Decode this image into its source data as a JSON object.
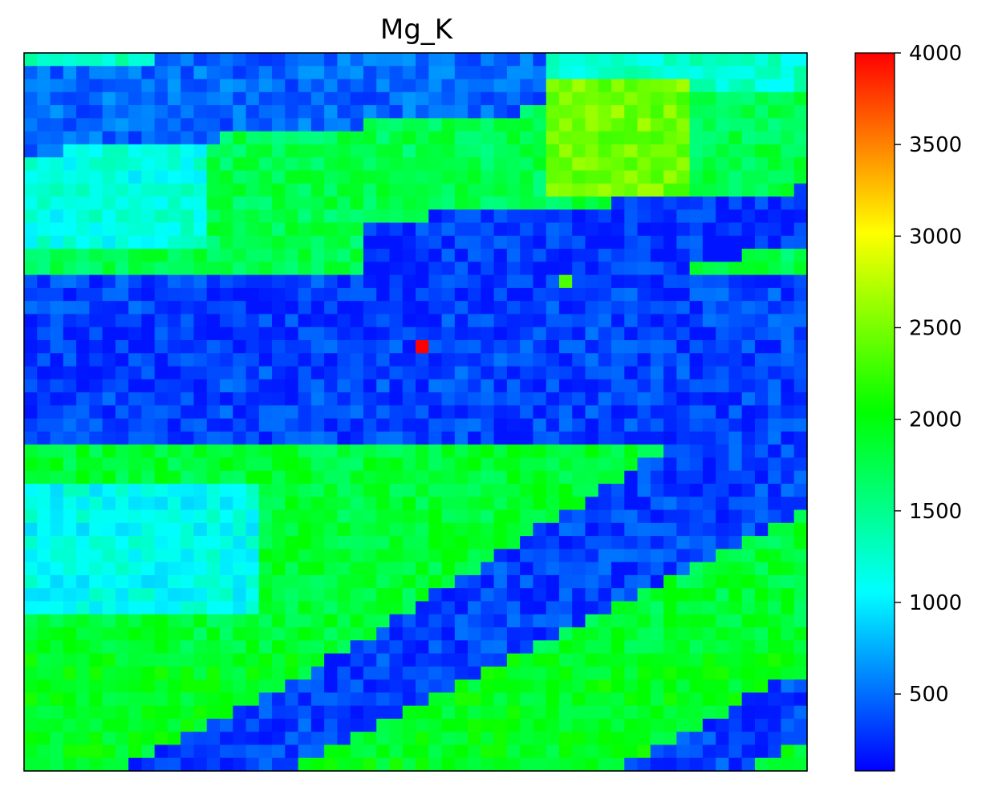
{
  "chart_data": {
    "type": "heatmap",
    "title": "Mg_K",
    "xlabel": "",
    "ylabel": "",
    "colormap": "gist_rainbow_r-like (blue-cyan-green-yellow-red)",
    "color_stops": [
      {
        "value": 0,
        "color": "#0000ff"
      },
      {
        "value": 1000,
        "color": "#00ffff"
      },
      {
        "value": 2000,
        "color": "#00ff00"
      },
      {
        "value": 3000,
        "color": "#ffff00"
      },
      {
        "value": 4000,
        "color": "#ff0000"
      }
    ],
    "colorbar": {
      "range": [
        80,
        4000
      ],
      "ticks": [
        500,
        1000,
        1500,
        2000,
        2500,
        3000,
        3500,
        4000
      ],
      "tick_labels": [
        "500",
        "1000",
        "1500",
        "2000",
        "2500",
        "3000",
        "3500",
        "4000"
      ]
    },
    "grid": false,
    "axes_ticks_visible": false,
    "grid_size": {
      "cols": 60,
      "rows": 55
    },
    "regions": [
      {
        "rows": [
          0,
          2
        ],
        "cols": [
          0,
          59
        ],
        "value": 1200
      },
      {
        "rows": [
          3,
          16
        ],
        "cols": [
          0,
          59
        ],
        "value": 1700
      },
      {
        "rows": [
          17,
          29
        ],
        "cols": [
          0,
          59
        ],
        "value": 260
      },
      {
        "rows": [
          30,
          45
        ],
        "cols": [
          0,
          59
        ],
        "value": 1800
      },
      {
        "rows": [
          46,
          54
        ],
        "cols": [
          0,
          59
        ],
        "value": 1900
      }
    ],
    "bands": [
      {
        "description": "top-left blue diagonal stripe",
        "value": 400
      },
      {
        "description": "central horizontal blue band",
        "value": 200
      },
      {
        "description": "lower-right blue diagonal stripe",
        "value": 250
      },
      {
        "description": "bottom blue diagonal stripe",
        "value": 250
      }
    ],
    "hotspots": [
      {
        "row": 22,
        "col": 30,
        "value": 4000
      },
      {
        "row": 17,
        "col": 41,
        "value": 2300
      }
    ]
  }
}
